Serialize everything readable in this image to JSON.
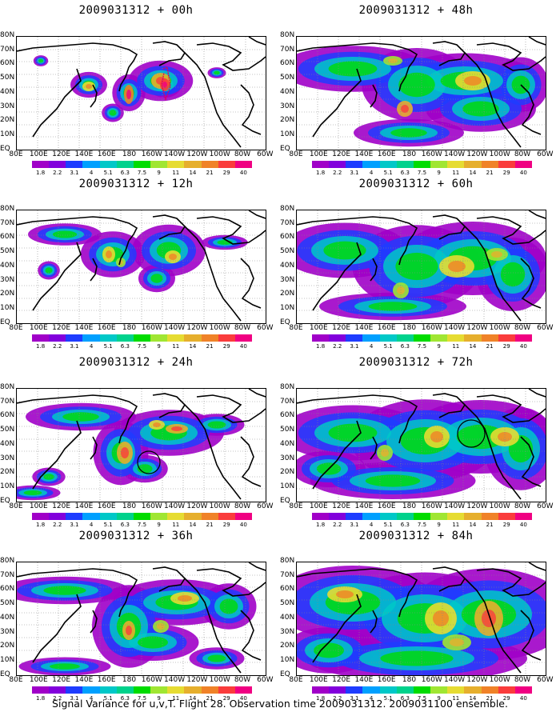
{
  "panels": [
    {
      "title": "2009031312 + 00h",
      "col": 0,
      "row": 0,
      "fill": 0.15
    },
    {
      "title": "2009031312 + 12h",
      "col": 0,
      "row": 1,
      "fill": 0.35
    },
    {
      "title": "2009031312 + 24h",
      "col": 0,
      "row": 2,
      "fill": 0.5
    },
    {
      "title": "2009031312 + 36h",
      "col": 0,
      "row": 3,
      "fill": 0.6
    },
    {
      "title": "2009031312 + 48h",
      "col": 1,
      "row": 0,
      "fill": 0.65
    },
    {
      "title": "2009031312 + 60h",
      "col": 1,
      "row": 1,
      "fill": 0.75
    },
    {
      "title": "2009031312 + 72h",
      "col": 1,
      "row": 2,
      "fill": 0.85
    },
    {
      "title": "2009031312 + 84h",
      "col": 1,
      "row": 3,
      "fill": 0.95
    }
  ],
  "lat_labels": [
    "80N",
    "70N",
    "60N",
    "50N",
    "40N",
    "30N",
    "20N",
    "10N",
    "EQ"
  ],
  "lon_labels": [
    "80E",
    "100E",
    "120E",
    "140E",
    "160E",
    "180",
    "160W",
    "140W",
    "120W",
    "100W",
    "80W",
    "60W"
  ],
  "colorbar": {
    "ticks": [
      "1.8",
      "2.2",
      "3.1",
      "4",
      "5.1",
      "6.3",
      "7.5",
      "9",
      "11",
      "14",
      "21",
      "29",
      "40"
    ],
    "colors": [
      "#a000c8",
      "#8200dc",
      "#1e3cff",
      "#00a0ff",
      "#00c8c8",
      "#00d28c",
      "#00dc00",
      "#a0e632",
      "#e6dc32",
      "#e6af2d",
      "#f08228",
      "#fa3c3c",
      "#f00082"
    ]
  },
  "caption": "Signal Variance for u,v,T. Flight 28. Observation time 2009031312. 2009031100 ensemble."
}
